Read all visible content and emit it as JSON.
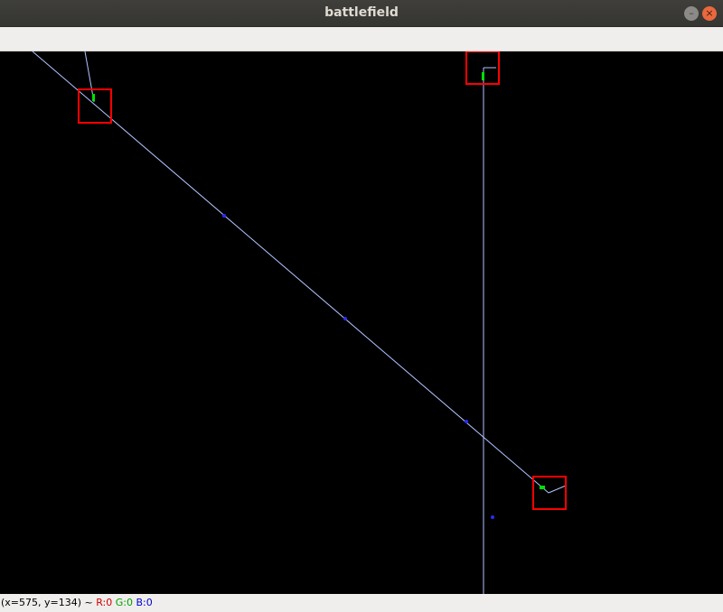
{
  "window": {
    "title": "battlefield",
    "minimize_glyph": "–",
    "close_glyph": "×"
  },
  "status": {
    "coords": "(x=575, y=134) ~",
    "r": "R:0",
    "g": "G:0",
    "b": "B:0"
  },
  "colors": {
    "line": "#b0c4ff",
    "box": "#ff0000",
    "marker_green": "#00e000",
    "marker_blue": "#2a2aff",
    "background": "#000000"
  },
  "icons": [
    "minimize-icon",
    "close-icon"
  ]
}
